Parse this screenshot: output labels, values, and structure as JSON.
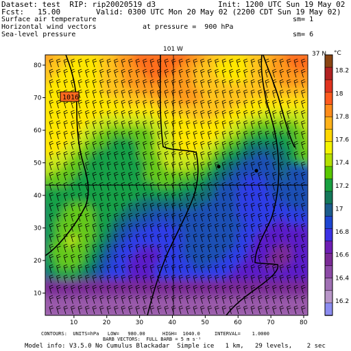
{
  "header": {
    "dataset": "Dataset: test  RIP: rip20020519 d3",
    "init": "Init: 1200 UTC Sun 19 May 02",
    "fcst": "Fcst:   15.00",
    "valid": "Valid: 0300 UTC Mon 20 May 02 (2200 CDT Sun 19 May 02)",
    "line3_left": "Surface air temperature",
    "line3_right": "sm= 1",
    "line4_left": "Horizontal wind vectors",
    "line4_mid": "at pressure =  900 hPa",
    "line5_left": "Sea-level pressure",
    "line5_right": "sm= 6"
  },
  "plot": {
    "cross_label": "101 W",
    "lat_label": "37 N",
    "contour_label": "1016",
    "x_ticks": [
      "10",
      "20",
      "30",
      "40",
      "50",
      "60",
      "70",
      "80"
    ],
    "y_ticks": [
      "10",
      "20",
      "30",
      "40",
      "50",
      "60",
      "70",
      "80"
    ]
  },
  "colorbar": {
    "unit": "°C",
    "labels": [
      "18.2",
      "18",
      "17.8",
      "17.6",
      "17.4",
      "17.2",
      "17",
      "16.8",
      "16.6",
      "16.4",
      "16.2"
    ],
    "colors": [
      "#8b4513",
      "#b22222",
      "#e0331f",
      "#ff5a1e",
      "#ff8c1a",
      "#ffb21a",
      "#ffd700",
      "#f4f400",
      "#b4e000",
      "#5ac800",
      "#18a040",
      "#14785a",
      "#1c5c8c",
      "#1e46d2",
      "#3c32e6",
      "#6e1eb4",
      "#7a2a96",
      "#8c4aa6",
      "#a070b4",
      "#b896c8",
      "#8c8cf0"
    ]
  },
  "footer": {
    "line1": "CONTOURS:  UNITS=hPa   LOW=   980.00      HIGH=  1040.0     INTERVAL=    1.0000",
    "line2": "BARB VECTORS:  FULL BARB = 5 m s⁻¹",
    "line3": "Model info: V3.5.0 No Cumulus Blackadar  Simple ice   1 km,   29 levels,    2 sec"
  }
}
